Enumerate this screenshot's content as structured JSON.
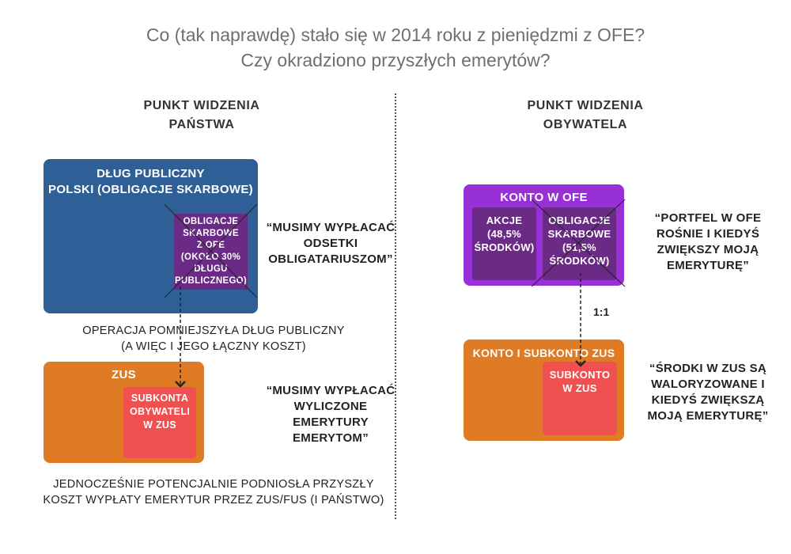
{
  "title": {
    "line1": "Co (tak naprawdę) stało się w 2014 roku z pieniędzmi z OFE?",
    "line2": "Czy okradziono przyszłych emerytów?"
  },
  "left": {
    "heading": [
      "PUNKT WIDZENIA",
      "PAŃSTWA"
    ],
    "public_debt": {
      "label": [
        "DŁUG PUBLICZNY",
        "POLSKI (OBLIGACJE SKARBOWE)"
      ],
      "color": "#2e5f96"
    },
    "ofe_bonds": {
      "label": [
        "OBLIGACJE",
        "SKARBOWE",
        "Z OFE",
        "(OKOŁO 30%",
        "DŁUGU",
        "PUBLICZNEGO)"
      ],
      "color": "#6a2a86"
    },
    "quote_debt": [
      "“MUSIMY WYPŁACAĆ",
      "ODSETKI",
      "OBLIGATARIUSZOM”"
    ],
    "caption_debt": [
      "OPERACJA POMNIEJSZYŁA DŁUG PUBLICZNY",
      "(A WIĘC I JEGO ŁĄCZNY KOSZT)"
    ],
    "zus": {
      "label": "ZUS",
      "color": "#e07b25"
    },
    "zus_sub": {
      "label": [
        "SUBKONTA",
        "OBYWATELI",
        "W ZUS"
      ],
      "color": "#f0504f"
    },
    "quote_zus": [
      "“MUSIMY WYPŁACAĆ",
      "WYLICZONE",
      "EMERYTURY",
      "EMERYTOM”"
    ],
    "caption_zus": [
      "JEDNOCZEŚNIE POTENCJALNIE PODNIOSŁA PRZYSZŁY",
      "KOSZT WYPŁATY EMERYTUR PRZEZ ZUS/FUS (I PAŃSTWO)"
    ]
  },
  "right": {
    "heading": [
      "PUNKT WIDZENIA",
      "OBYWATELA"
    ],
    "ofe": {
      "label": "KONTO W OFE",
      "color": "#9730d6",
      "inner_color": "#6a2a86",
      "stocks": [
        "AKCJE",
        "(48,5%",
        "ŚRODKÓW)"
      ],
      "bonds": [
        "OBLIGACJE",
        "SKARBOWE",
        "(51,5%",
        "ŚRODKÓW)"
      ]
    },
    "quote_ofe": [
      "“PORTFEL W OFE",
      "ROŚNIE I KIEDYŚ",
      "ZWIĘKSZY MOJĄ",
      "EMERYTURĘ”"
    ],
    "ratio": "1:1",
    "zus": {
      "label": "KONTO I SUBKONTO ZUS",
      "color": "#e07b25"
    },
    "zus_sub": {
      "label": [
        "SUBKONTO",
        "W ZUS"
      ],
      "color": "#f0504f"
    },
    "quote_zus": [
      "“ŚRODKI W ZUS SĄ",
      "WALORYZOWANE I",
      "KIEDYŚ ZWIĘKSZĄ",
      "MOJĄ EMERYTURĘ”"
    ]
  }
}
